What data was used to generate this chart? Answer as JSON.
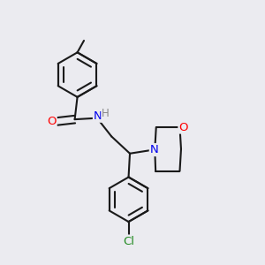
{
  "background_color": "#ebebf0",
  "bond_color": "#1a1a1a",
  "atom_colors": {
    "O": "#ff0000",
    "N": "#0000ee",
    "Cl": "#228b22",
    "C": "#1a1a1a"
  },
  "lw": 1.5,
  "dbo": 0.012,
  "fs": 8.5,
  "figsize": [
    3.0,
    3.0
  ],
  "dpi": 100,
  "xlim": [
    0.0,
    1.0
  ],
  "ylim": [
    0.0,
    1.0
  ]
}
